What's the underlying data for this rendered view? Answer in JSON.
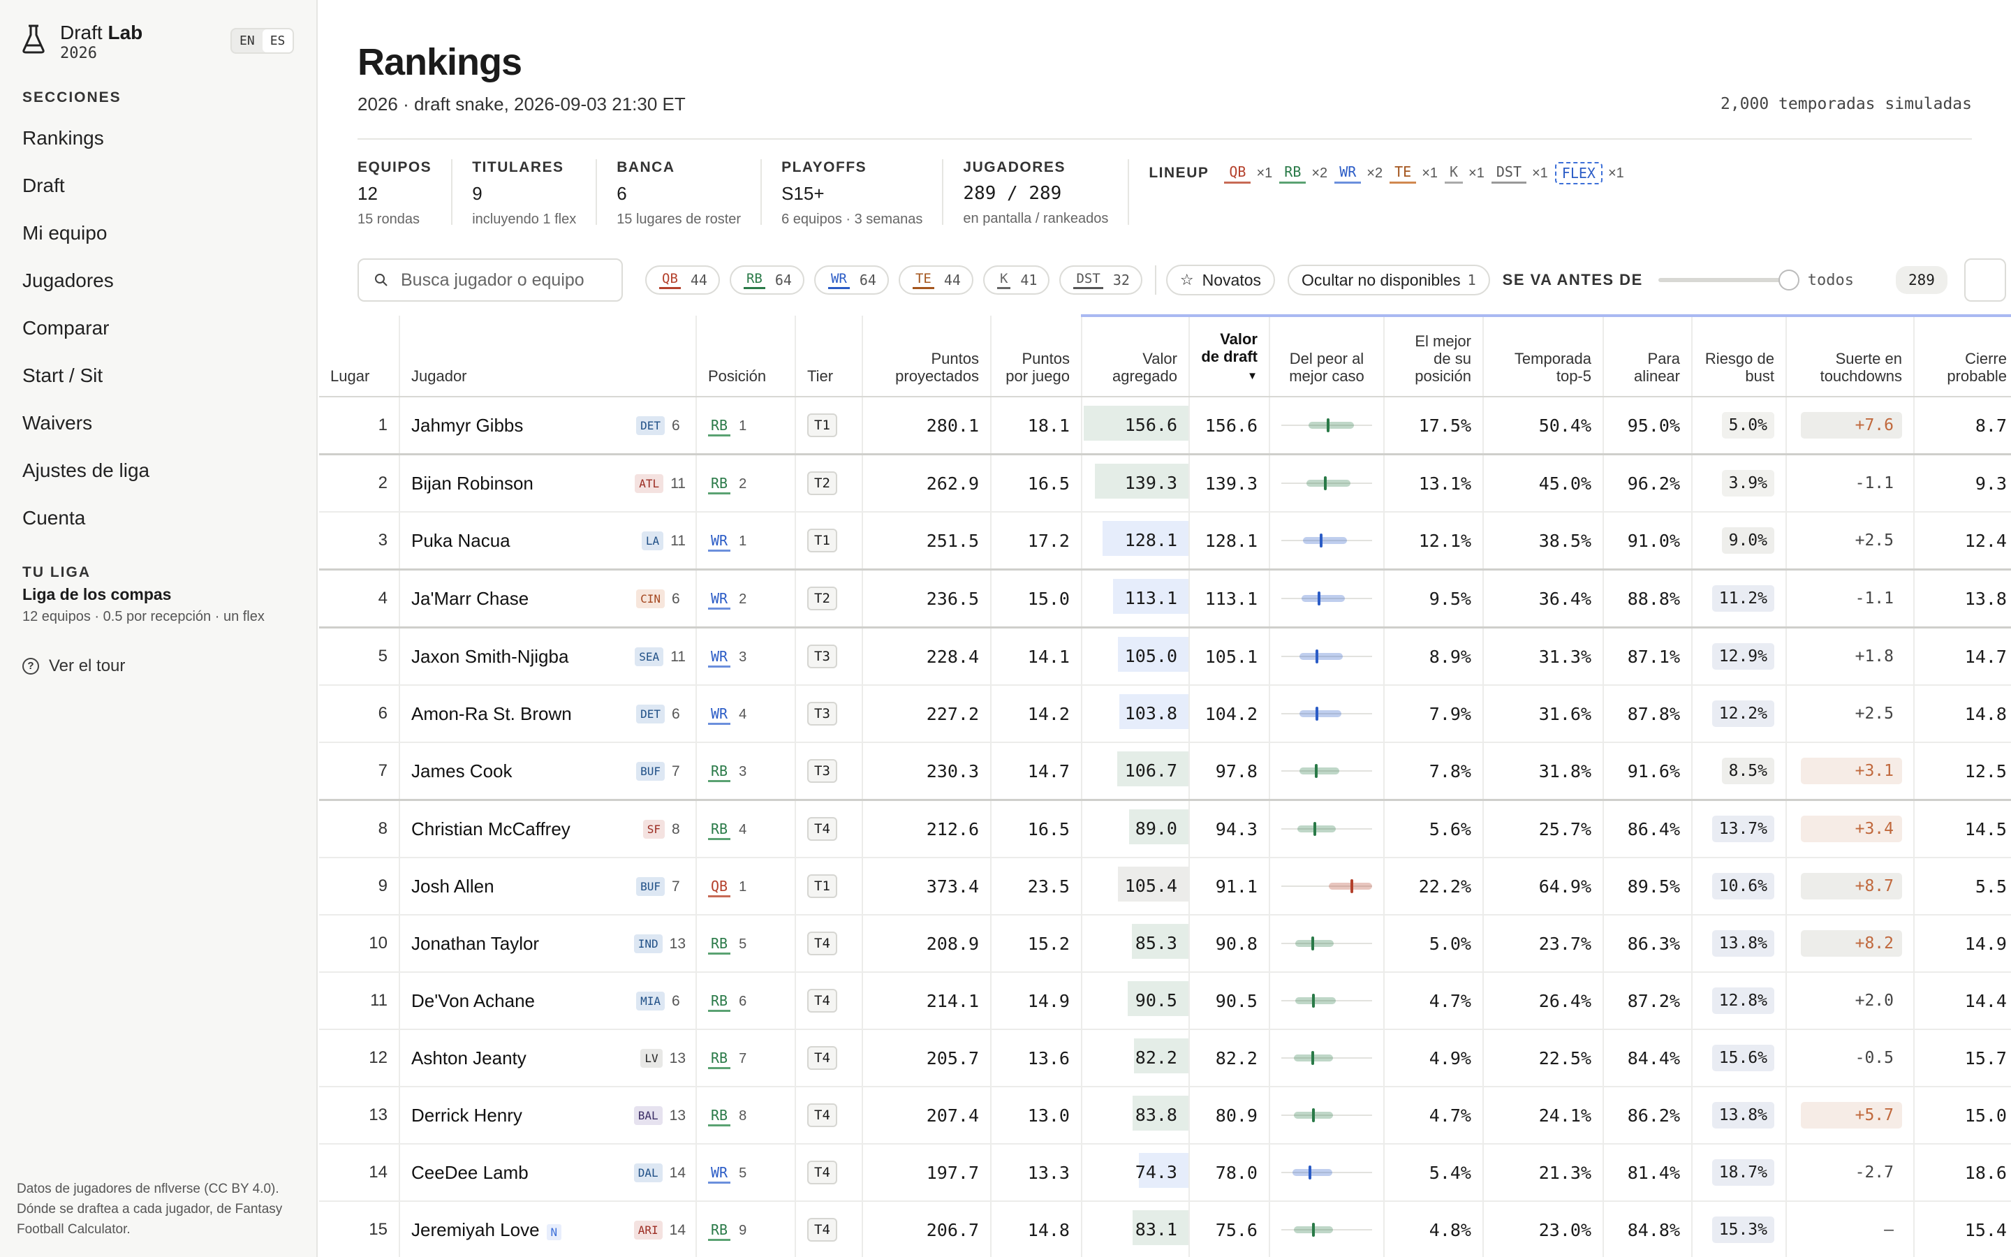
{
  "sidebar": {
    "brand_first": "Draft",
    "brand_bold": "Lab",
    "brand_year": "2026",
    "lang_en": "EN",
    "lang_es": "ES",
    "sections_title": "SECCIONES",
    "nav": [
      "Rankings",
      "Draft",
      "Mi equipo",
      "Jugadores",
      "Comparar",
      "Start / Sit",
      "Waivers",
      "Ajustes de liga",
      "Cuenta"
    ],
    "league_title": "TU LIGA",
    "league_name": "Liga de los compas",
    "league_info": "12 equipos · 0.5 por recepción · un flex",
    "tour": "Ver el tour",
    "credits": "Datos de jugadores de nflverse (CC BY 4.0). Dónde se draftea a cada jugador, de Fantasy Football Calculator."
  },
  "header": {
    "title": "Rankings",
    "subtitle": "2026 · draft snake, 2026-09-03 21:30 ET",
    "sims": "2,000 temporadas simuladas"
  },
  "stats": [
    {
      "label": "EQUIPOS",
      "value": "12",
      "sub": "15 rondas"
    },
    {
      "label": "TITULARES",
      "value": "9",
      "sub": "incluyendo 1 flex"
    },
    {
      "label": "BANCA",
      "value": "6",
      "sub": "15 lugares de roster"
    },
    {
      "label": "PLAYOFFS",
      "value": "S15+",
      "sub": "6 equipos · 3 semanas"
    },
    {
      "label": "JUGADORES",
      "value": "289 / 289",
      "sub": "en pantalla / rankeados"
    }
  ],
  "lineup": {
    "label": "LINEUP",
    "items": [
      {
        "pos": "QB",
        "mult": "×1"
      },
      {
        "pos": "RB",
        "mult": "×2"
      },
      {
        "pos": "WR",
        "mult": "×2"
      },
      {
        "pos": "TE",
        "mult": "×1"
      },
      {
        "pos": "K",
        "mult": "×1"
      },
      {
        "pos": "DST",
        "mult": "×1"
      },
      {
        "pos": "FLEX",
        "mult": "×1"
      }
    ]
  },
  "toolbar": {
    "search_placeholder": "Busca jugador o equipo",
    "positions": [
      {
        "pos": "QB",
        "count": "44"
      },
      {
        "pos": "RB",
        "count": "64"
      },
      {
        "pos": "WR",
        "count": "64"
      },
      {
        "pos": "TE",
        "count": "44"
      },
      {
        "pos": "K",
        "count": "41"
      },
      {
        "pos": "DST",
        "count": "32"
      }
    ],
    "rookies": "Novatos",
    "hide_unavailable": "Ocultar no disponibles",
    "hide_count": "1",
    "slider_label": "SE VA ANTES DE",
    "slider_value": "todos",
    "result_count": "289"
  },
  "columns": [
    "Lugar",
    "Jugador",
    "Posición",
    "Tier",
    "Puntos proyectados",
    "Puntos por juego",
    "Valor agregado",
    "Valor de draft",
    "Del peor al mejor caso",
    "El mejor de su posición",
    "Temporada top-5",
    "Para alinear",
    "Riesgo de bust",
    "Suerte en touchdowns",
    "Cierre probable"
  ],
  "sort_arrow": "▼",
  "colors": {
    "qb": "#b4412c",
    "rb": "#2a7a48",
    "wr": "#2b5cc6",
    "te": "#a4561e",
    "va_rb": "#e4ede7",
    "va_wr": "#e6edfb",
    "va_qb": "#ececea",
    "luck_pos": "#f6ece6",
    "luck_pos_strong": "#ededea"
  },
  "players": [
    {
      "rank": "1",
      "name": "Jahmyr Gibbs",
      "team": "DET",
      "team_num": "6",
      "pos": "RB",
      "pos_rank": "1",
      "tier": "T1",
      "proj": "280.1",
      "ppg": "18.1",
      "va": "156.6",
      "va_level": 1.0,
      "dv": "156.6",
      "best_pos": "17.5%",
      "top5": "50.4%",
      "start": "95.0%",
      "bust": "5.0%",
      "luck": "+7.6",
      "luck_level": "strong",
      "close": "8.7",
      "range": [
        0.3,
        0.8,
        0.5
      ],
      "tierbreak": true
    },
    {
      "rank": "2",
      "name": "Bijan Robinson",
      "team": "ATL",
      "team_num": "11",
      "pos": "RB",
      "pos_rank": "2",
      "tier": "T2",
      "proj": "262.9",
      "ppg": "16.5",
      "va": "139.3",
      "va_level": 0.89,
      "dv": "139.3",
      "best_pos": "13.1%",
      "top5": "45.0%",
      "start": "96.2%",
      "bust": "3.9%",
      "luck": "-1.1",
      "luck_level": "none",
      "close": "9.3",
      "range": [
        0.28,
        0.76,
        0.47
      ],
      "tierbreak": false
    },
    {
      "rank": "3",
      "name": "Puka Nacua",
      "team": "LA",
      "team_num": "11",
      "pos": "WR",
      "pos_rank": "1",
      "tier": "T1",
      "proj": "251.5",
      "ppg": "17.2",
      "va": "128.1",
      "va_level": 0.82,
      "dv": "128.1",
      "best_pos": "12.1%",
      "top5": "38.5%",
      "start": "91.0%",
      "bust": "9.0%",
      "luck": "+2.5",
      "luck_level": "none",
      "close": "12.4",
      "range": [
        0.24,
        0.72,
        0.42
      ],
      "tierbreak": true
    },
    {
      "rank": "4",
      "name": "Ja'Marr Chase",
      "team": "CIN",
      "team_num": "6",
      "pos": "WR",
      "pos_rank": "2",
      "tier": "T2",
      "proj": "236.5",
      "ppg": "15.0",
      "va": "113.1",
      "va_level": 0.72,
      "dv": "113.1",
      "best_pos": "9.5%",
      "top5": "36.4%",
      "start": "88.8%",
      "bust": "11.2%",
      "luck": "-1.1",
      "luck_level": "none",
      "close": "13.8",
      "range": [
        0.22,
        0.7,
        0.4
      ],
      "tierbreak": true
    },
    {
      "rank": "5",
      "name": "Jaxon Smith-Njigba",
      "team": "SEA",
      "team_num": "11",
      "pos": "WR",
      "pos_rank": "3",
      "tier": "T3",
      "proj": "228.4",
      "ppg": "14.1",
      "va": "105.0",
      "va_level": 0.67,
      "dv": "105.1",
      "best_pos": "8.9%",
      "top5": "31.3%",
      "start": "87.1%",
      "bust": "12.9%",
      "luck": "+1.8",
      "luck_level": "none",
      "close": "14.7",
      "range": [
        0.2,
        0.68,
        0.38
      ],
      "tierbreak": false
    },
    {
      "rank": "6",
      "name": "Amon-Ra St. Brown",
      "team": "DET",
      "team_num": "6",
      "pos": "WR",
      "pos_rank": "4",
      "tier": "T3",
      "proj": "227.2",
      "ppg": "14.2",
      "va": "103.8",
      "va_level": 0.66,
      "dv": "104.2",
      "best_pos": "7.9%",
      "top5": "31.6%",
      "start": "87.8%",
      "bust": "12.2%",
      "luck": "+2.5",
      "luck_level": "none",
      "close": "14.8",
      "range": [
        0.2,
        0.66,
        0.38
      ],
      "tierbreak": false
    },
    {
      "rank": "7",
      "name": "James Cook",
      "team": "BUF",
      "team_num": "7",
      "pos": "RB",
      "pos_rank": "3",
      "tier": "T3",
      "proj": "230.3",
      "ppg": "14.7",
      "va": "106.7",
      "va_level": 0.68,
      "dv": "97.8",
      "best_pos": "7.8%",
      "top5": "31.8%",
      "start": "91.6%",
      "bust": "8.5%",
      "luck": "+3.1",
      "luck_level": "light",
      "close": "12.5",
      "range": [
        0.2,
        0.64,
        0.37
      ],
      "tierbreak": true
    },
    {
      "rank": "8",
      "name": "Christian McCaffrey",
      "team": "SF",
      "team_num": "8",
      "pos": "RB",
      "pos_rank": "4",
      "tier": "T4",
      "proj": "212.6",
      "ppg": "16.5",
      "va": "89.0",
      "va_level": 0.57,
      "dv": "94.3",
      "best_pos": "5.6%",
      "top5": "25.7%",
      "start": "86.4%",
      "bust": "13.7%",
      "luck": "+3.4",
      "luck_level": "light",
      "close": "14.5",
      "range": [
        0.18,
        0.6,
        0.35
      ],
      "tierbreak": false
    },
    {
      "rank": "9",
      "name": "Josh Allen",
      "team": "BUF",
      "team_num": "7",
      "pos": "QB",
      "pos_rank": "1",
      "tier": "T1",
      "proj": "373.4",
      "ppg": "23.5",
      "va": "105.4",
      "va_level": 0.67,
      "dv": "91.1",
      "best_pos": "22.2%",
      "top5": "64.9%",
      "start": "89.5%",
      "bust": "10.6%",
      "luck": "+8.7",
      "luck_level": "strong",
      "close": "5.5",
      "range": [
        0.52,
        1.0,
        0.76
      ],
      "tierbreak": false
    },
    {
      "rank": "10",
      "name": "Jonathan Taylor",
      "team": "IND",
      "team_num": "13",
      "pos": "RB",
      "pos_rank": "5",
      "tier": "T4",
      "proj": "208.9",
      "ppg": "15.2",
      "va": "85.3",
      "va_level": 0.54,
      "dv": "90.8",
      "best_pos": "5.0%",
      "top5": "23.7%",
      "start": "86.3%",
      "bust": "13.8%",
      "luck": "+8.2",
      "luck_level": "strong",
      "close": "14.9",
      "range": [
        0.15,
        0.58,
        0.33
      ],
      "tierbreak": false
    },
    {
      "rank": "11",
      "name": "De'Von Achane",
      "team": "MIA",
      "team_num": "6",
      "pos": "RB",
      "pos_rank": "6",
      "tier": "T4",
      "proj": "214.1",
      "ppg": "14.9",
      "va": "90.5",
      "va_level": 0.58,
      "dv": "90.5",
      "best_pos": "4.7%",
      "top5": "26.4%",
      "start": "87.2%",
      "bust": "12.8%",
      "luck": "+2.0",
      "luck_level": "none",
      "close": "14.4",
      "range": [
        0.15,
        0.6,
        0.34
      ],
      "tierbreak": false
    },
    {
      "rank": "12",
      "name": "Ashton Jeanty",
      "team": "LV",
      "team_num": "13",
      "pos": "RB",
      "pos_rank": "7",
      "tier": "T4",
      "proj": "205.7",
      "ppg": "13.6",
      "va": "82.2",
      "va_level": 0.52,
      "dv": "82.2",
      "best_pos": "4.9%",
      "top5": "22.5%",
      "start": "84.4%",
      "bust": "15.6%",
      "luck": "-0.5",
      "luck_level": "none",
      "close": "15.7",
      "range": [
        0.14,
        0.57,
        0.33
      ],
      "tierbreak": false
    },
    {
      "rank": "13",
      "name": "Derrick Henry",
      "team": "BAL",
      "team_num": "13",
      "pos": "RB",
      "pos_rank": "8",
      "tier": "T4",
      "proj": "207.4",
      "ppg": "13.0",
      "va": "83.8",
      "va_level": 0.53,
      "dv": "80.9",
      "best_pos": "4.7%",
      "top5": "24.1%",
      "start": "86.2%",
      "bust": "13.8%",
      "luck": "+5.7",
      "luck_level": "light",
      "close": "15.0",
      "range": [
        0.14,
        0.57,
        0.34
      ],
      "tierbreak": false
    },
    {
      "rank": "14",
      "name": "CeeDee Lamb",
      "team": "DAL",
      "team_num": "14",
      "pos": "WR",
      "pos_rank": "5",
      "tier": "T4",
      "proj": "197.7",
      "ppg": "13.3",
      "va": "74.3",
      "va_level": 0.47,
      "dv": "78.0",
      "best_pos": "5.4%",
      "top5": "21.3%",
      "start": "81.4%",
      "bust": "18.7%",
      "luck": "-2.7",
      "luck_level": "none",
      "close": "18.6",
      "range": [
        0.12,
        0.56,
        0.3
      ],
      "tierbreak": false
    },
    {
      "rank": "15",
      "name": "Jeremiyah Love",
      "team": "ARI",
      "team_num": "14",
      "rookie": "N",
      "pos": "RB",
      "pos_rank": "9",
      "tier": "T4",
      "proj": "206.7",
      "ppg": "14.8",
      "va": "83.1",
      "va_level": 0.53,
      "dv": "75.6",
      "best_pos": "4.8%",
      "top5": "23.0%",
      "start": "84.8%",
      "bust": "15.3%",
      "luck": "–",
      "luck_level": "none",
      "close": "15.4",
      "range": [
        0.14,
        0.57,
        0.34
      ],
      "tierbreak": false
    }
  ]
}
